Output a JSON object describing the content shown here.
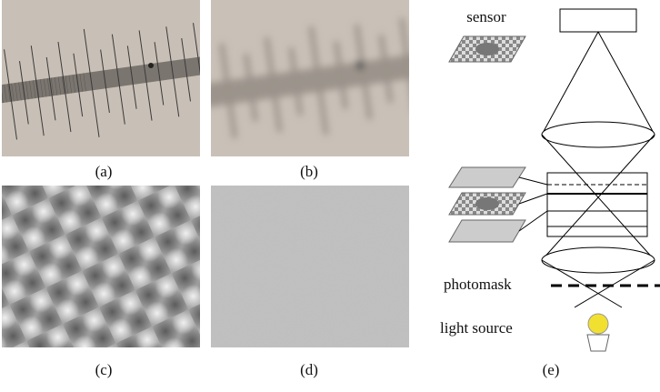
{
  "panels": [
    {
      "label": "(a)"
    },
    {
      "label": "(b)"
    },
    {
      "label": "(c)"
    },
    {
      "label": "(d)"
    },
    {
      "label": "(e)"
    }
  ],
  "diagram": {
    "sensor": "sensor",
    "photomask": "photomask",
    "light_source": "light source"
  }
}
